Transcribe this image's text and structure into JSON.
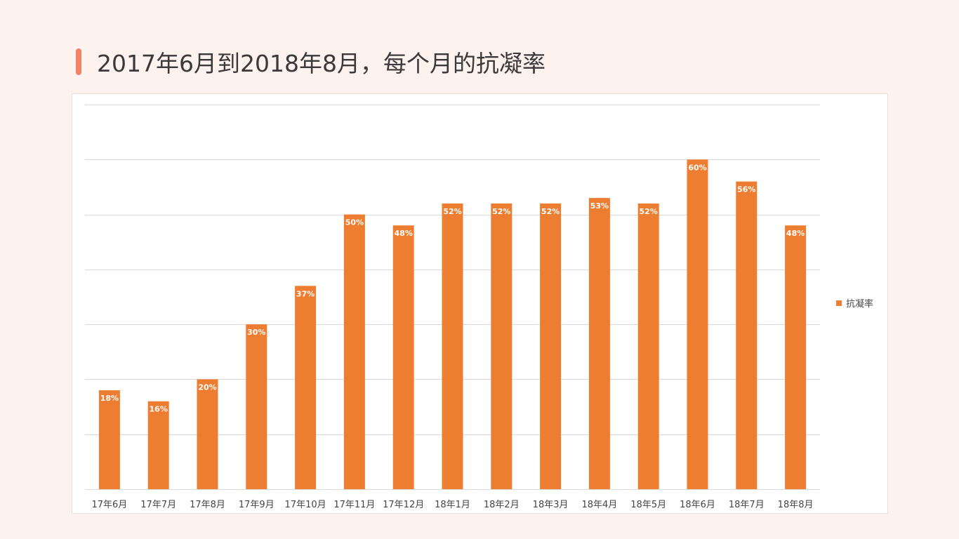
{
  "header": {
    "title": "2017年6月到2018年8月，每个月的抗凝率"
  },
  "colors": {
    "background": "#fdf2ee",
    "accent": "#f08368",
    "bar": "#ed7d31",
    "grid": "#d9d9d9"
  },
  "chart_data": {
    "type": "bar",
    "title": "",
    "xlabel": "",
    "ylabel": "",
    "categories": [
      "17年6月",
      "17年7月",
      "17年8月",
      "17年9月",
      "17年10月",
      "17年11月",
      "17年12月",
      "18年1月",
      "18年2月",
      "18年3月",
      "18年4月",
      "18年5月",
      "18年6月",
      "18年7月",
      "18年8月"
    ],
    "series": [
      {
        "name": "抗凝率",
        "values": [
          0.18,
          0.16,
          0.2,
          0.3,
          0.37,
          0.5,
          0.48,
          0.52,
          0.52,
          0.52,
          0.53,
          0.52,
          0.6,
          0.56,
          0.48
        ],
        "labels": [
          "18%",
          "16%",
          "20%",
          "30%",
          "37%",
          "50%",
          "48%",
          "52%",
          "52%",
          "52%",
          "53%",
          "52%",
          "60%",
          "56%",
          "48%"
        ]
      }
    ],
    "ylim": [
      0,
      0.7
    ],
    "grid": true,
    "y_tick_labels_visible": false,
    "legend_position": "right"
  }
}
